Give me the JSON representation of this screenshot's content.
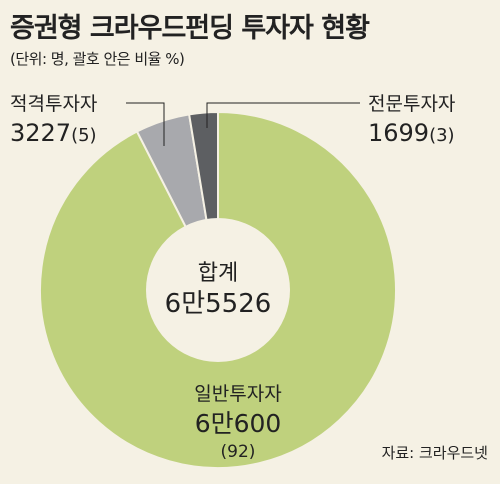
{
  "title": "증권형 크라우드펀딩 투자자 현황",
  "subtitle": "(단위: 명, 괄호 안은 비율 %)",
  "source": "자료: 크라우드넷",
  "chart_data": {
    "type": "pie",
    "variant": "donut",
    "center_label": "합계",
    "center_value": "6만5526",
    "slices": [
      {
        "name": "일반투자자",
        "value": 60600,
        "value_label": "6만600",
        "percent_label": "(92)",
        "color": "#bfd17d"
      },
      {
        "name": "적격투자자",
        "value": 3227,
        "value_label": "3227",
        "percent_label": "(5)",
        "color": "#a8a9ad"
      },
      {
        "name": "전문투자자",
        "value": 1699,
        "value_label": "1699",
        "percent_label": "(3)",
        "color": "#5d5f62"
      }
    ]
  }
}
